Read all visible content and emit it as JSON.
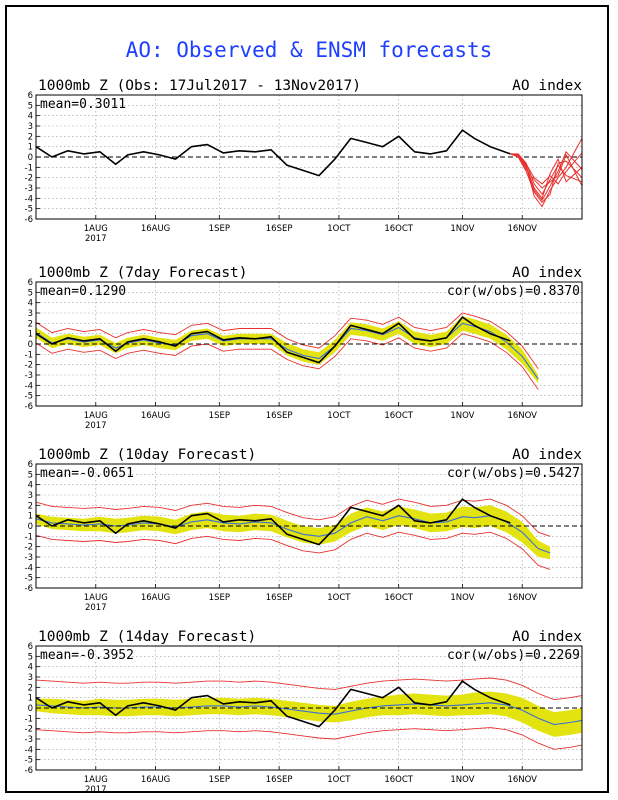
{
  "title": "AO: Observed & ENSM forecasts",
  "colors": {
    "title": "#1f3fff",
    "observed": "#000000",
    "ensemble_member": "#e8312f",
    "ensemble_mean": "#3a6fd8",
    "spread": "#e3e30f",
    "zero_line": "#000000",
    "grid": "#9a9a9a"
  },
  "y_ticks": [
    "6",
    "5",
    "4",
    "3",
    "2",
    "1",
    "0",
    "-1",
    "-2",
    "-3",
    "-4",
    "-5",
    "-6"
  ],
  "x_ticks": [
    "1AUG",
    "16AUG",
    "1SEP",
    "16SEP",
    "1OCT",
    "16OCT",
    "1NOV",
    "16NOV"
  ],
  "x_year": "2017",
  "panels": [
    {
      "title": "1000mb Z (Obs: 17Jul2017 - 13Nov2017)",
      "right_title": "AO index",
      "mean": "mean=0.3011",
      "cor": ""
    },
    {
      "title": "1000mb Z (7day Forecast)",
      "right_title": "AO index",
      "mean": "mean=0.1290",
      "cor": "cor(w/obs)=0.8370"
    },
    {
      "title": "1000mb Z (10day Forecast)",
      "right_title": "AO index",
      "mean": "mean=-0.0651",
      "cor": "cor(w/obs)=0.5427"
    },
    {
      "title": "1000mb Z (14day Forecast)",
      "right_title": "AO index",
      "mean": "mean=-0.3952",
      "cor": "cor(w/obs)=0.2269"
    }
  ],
  "chart_data": {
    "type": "line",
    "title": "AO: Observed & ENSM forecasts",
    "ylim": [
      -6,
      6
    ],
    "x_start": "2017-07-17",
    "x_end": "2017-12-01",
    "observed": {
      "x": [
        "2017-07-17",
        "2017-07-21",
        "2017-07-25",
        "2017-07-29",
        "2017-08-02",
        "2017-08-06",
        "2017-08-09",
        "2017-08-13",
        "2017-08-17",
        "2017-08-21",
        "2017-08-25",
        "2017-08-29",
        "2017-09-02",
        "2017-09-06",
        "2017-09-10",
        "2017-09-14",
        "2017-09-18",
        "2017-09-22",
        "2017-09-26",
        "2017-09-30",
        "2017-10-04",
        "2017-10-08",
        "2017-10-12",
        "2017-10-16",
        "2017-10-20",
        "2017-10-24",
        "2017-10-28",
        "2017-11-01",
        "2017-11-04",
        "2017-11-08",
        "2017-11-13"
      ],
      "y": [
        1.0,
        0.0,
        0.6,
        0.3,
        0.5,
        -0.7,
        0.2,
        0.5,
        0.2,
        -0.2,
        1.0,
        1.2,
        0.4,
        0.6,
        0.5,
        0.7,
        -0.8,
        -1.3,
        -1.8,
        -0.2,
        1.8,
        1.4,
        1.0,
        2.0,
        0.5,
        0.3,
        0.6,
        2.6,
        1.8,
        1.0,
        0.3
      ]
    },
    "ensemble_members": {
      "x": [
        "2017-11-13",
        "2017-11-15",
        "2017-11-17",
        "2017-11-19",
        "2017-11-21",
        "2017-11-23",
        "2017-11-25",
        "2017-11-27",
        "2017-12-01"
      ],
      "members": [
        [
          0.3,
          0.2,
          -0.8,
          -3.8,
          -4.8,
          -3.2,
          -2.0,
          -1.0,
          1.8
        ],
        [
          0.3,
          0.1,
          -1.0,
          -3.2,
          -4.2,
          -2.8,
          -1.4,
          0.5,
          -1.2
        ],
        [
          0.3,
          0.3,
          -0.6,
          -2.6,
          -3.6,
          -2.2,
          -0.8,
          -1.8,
          -2.4
        ],
        [
          0.3,
          0.2,
          -0.9,
          -3.0,
          -4.0,
          -1.6,
          -0.2,
          -2.4,
          -1.0
        ],
        [
          0.3,
          0.1,
          -1.2,
          -2.2,
          -3.0,
          -2.4,
          -1.8,
          0.2,
          -2.8
        ],
        [
          0.3,
          0.2,
          -0.7,
          -2.0,
          -2.6,
          -1.8,
          -2.6,
          -1.4,
          0.4
        ],
        [
          0.3,
          0.0,
          -1.4,
          -3.4,
          -4.4,
          -3.6,
          -0.6,
          -0.4,
          -2.0
        ]
      ]
    },
    "forecasts": [
      {
        "name": "7day Forecast",
        "mean_stat": 0.129,
        "cor_with_obs": 0.837,
        "x": [
          "2017-07-17",
          "2017-07-21",
          "2017-07-25",
          "2017-07-29",
          "2017-08-02",
          "2017-08-06",
          "2017-08-09",
          "2017-08-13",
          "2017-08-17",
          "2017-08-21",
          "2017-08-25",
          "2017-08-29",
          "2017-09-02",
          "2017-09-06",
          "2017-09-10",
          "2017-09-14",
          "2017-09-18",
          "2017-09-22",
          "2017-09-26",
          "2017-09-30",
          "2017-10-04",
          "2017-10-08",
          "2017-10-12",
          "2017-10-16",
          "2017-10-20",
          "2017-10-24",
          "2017-10-28",
          "2017-11-01",
          "2017-11-04",
          "2017-11-08",
          "2017-11-12",
          "2017-11-16",
          "2017-11-20"
        ],
        "mean": [
          1.1,
          0.1,
          0.5,
          0.2,
          0.4,
          -0.4,
          0.1,
          0.4,
          0.1,
          -0.1,
          0.8,
          1.0,
          0.3,
          0.5,
          0.5,
          0.5,
          -0.5,
          -1.1,
          -1.4,
          -0.2,
          1.5,
          1.3,
          0.9,
          1.6,
          0.6,
          0.3,
          0.6,
          2.0,
          1.7,
          1.2,
          0.2,
          -1.2,
          -3.4
        ],
        "spread": [
          0.5,
          0.5,
          0.5,
          0.5,
          0.5,
          0.5,
          0.5,
          0.5,
          0.5,
          0.5,
          0.5,
          0.5,
          0.5,
          0.5,
          0.5,
          0.5,
          0.6,
          0.6,
          0.6,
          0.6,
          0.6,
          0.6,
          0.6,
          0.6,
          0.6,
          0.6,
          0.6,
          0.7,
          0.7,
          0.7,
          0.7,
          0.7,
          0.4
        ],
        "envelope": 1.0
      },
      {
        "name": "10day Forecast",
        "mean_stat": -0.0651,
        "cor_with_obs": 0.5427,
        "x": [
          "2017-07-17",
          "2017-07-21",
          "2017-07-25",
          "2017-07-29",
          "2017-08-02",
          "2017-08-06",
          "2017-08-09",
          "2017-08-13",
          "2017-08-17",
          "2017-08-21",
          "2017-08-25",
          "2017-08-29",
          "2017-09-02",
          "2017-09-06",
          "2017-09-10",
          "2017-09-14",
          "2017-09-18",
          "2017-09-22",
          "2017-09-26",
          "2017-09-30",
          "2017-10-04",
          "2017-10-08",
          "2017-10-12",
          "2017-10-16",
          "2017-10-20",
          "2017-10-24",
          "2017-10-28",
          "2017-11-01",
          "2017-11-04",
          "2017-11-08",
          "2017-11-12",
          "2017-11-16",
          "2017-11-20",
          "2017-11-23"
        ],
        "mean": [
          0.7,
          0.3,
          0.2,
          0.1,
          0.2,
          0.0,
          0.1,
          0.3,
          0.2,
          -0.1,
          0.4,
          0.6,
          0.3,
          0.2,
          0.4,
          0.3,
          -0.3,
          -0.8,
          -1.0,
          -0.7,
          0.3,
          0.9,
          0.5,
          1.0,
          0.7,
          0.3,
          0.4,
          0.9,
          0.8,
          1.0,
          0.4,
          -0.6,
          -2.2,
          -2.6
        ],
        "spread": [
          0.5,
          0.6,
          0.6,
          0.6,
          0.7,
          0.7,
          0.7,
          0.7,
          0.7,
          0.7,
          0.8,
          0.8,
          0.8,
          0.8,
          0.8,
          0.8,
          0.8,
          0.8,
          0.8,
          0.8,
          0.9,
          0.9,
          0.9,
          0.9,
          0.9,
          0.9,
          0.9,
          1.0,
          1.0,
          1.0,
          1.0,
          1.0,
          0.8,
          0.6
        ],
        "envelope": 1.6
      },
      {
        "name": "14day Forecast",
        "mean_stat": -0.3952,
        "cor_with_obs": 0.2269,
        "x": [
          "2017-07-17",
          "2017-07-21",
          "2017-07-25",
          "2017-07-29",
          "2017-08-02",
          "2017-08-06",
          "2017-08-09",
          "2017-08-13",
          "2017-08-17",
          "2017-08-21",
          "2017-08-25",
          "2017-08-29",
          "2017-09-02",
          "2017-09-06",
          "2017-09-10",
          "2017-09-14",
          "2017-09-18",
          "2017-09-22",
          "2017-09-26",
          "2017-09-30",
          "2017-10-04",
          "2017-10-08",
          "2017-10-12",
          "2017-10-16",
          "2017-10-20",
          "2017-10-24",
          "2017-10-28",
          "2017-11-01",
          "2017-11-04",
          "2017-11-08",
          "2017-11-12",
          "2017-11-16",
          "2017-11-20",
          "2017-11-24",
          "2017-11-28",
          "2017-12-01"
        ],
        "mean": [
          0.3,
          0.2,
          0.1,
          0.0,
          0.1,
          0.0,
          0.0,
          0.1,
          0.1,
          0.0,
          0.1,
          0.2,
          0.2,
          0.1,
          0.2,
          0.1,
          -0.1,
          -0.3,
          -0.5,
          -0.6,
          -0.3,
          0.0,
          0.2,
          0.3,
          0.4,
          0.3,
          0.2,
          0.3,
          0.4,
          0.5,
          0.3,
          -0.2,
          -1.0,
          -1.6,
          -1.4,
          -1.2
        ],
        "spread": [
          0.6,
          0.7,
          0.7,
          0.7,
          0.8,
          0.8,
          0.8,
          0.8,
          0.8,
          0.8,
          0.8,
          0.8,
          0.8,
          0.8,
          0.8,
          0.8,
          0.8,
          0.8,
          0.8,
          0.8,
          0.9,
          0.9,
          0.9,
          1.0,
          1.0,
          1.0,
          1.0,
          1.0,
          1.1,
          1.1,
          1.1,
          1.2,
          1.2,
          1.2,
          1.2,
          1.2
        ],
        "envelope": 2.4
      }
    ]
  }
}
